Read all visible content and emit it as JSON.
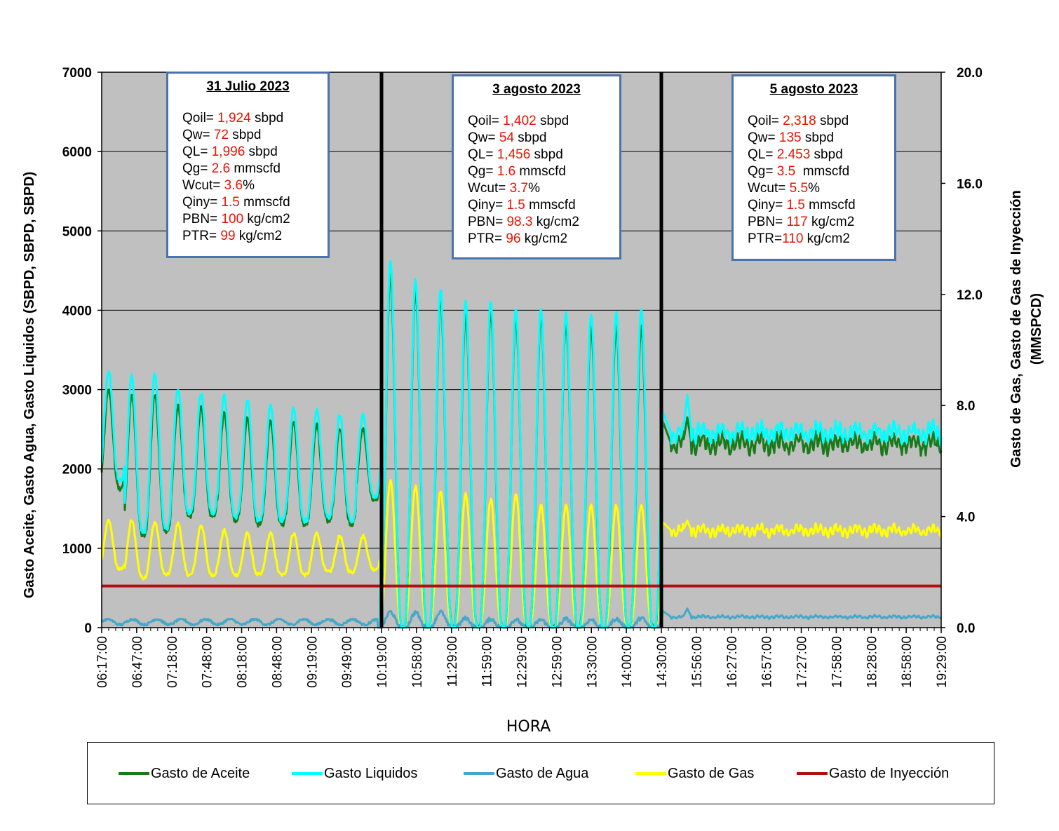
{
  "chart_data": {
    "type": "line",
    "xlabel": "HORA",
    "ylabel_left": "Gasto Aceite, Gasto Agua, Gasto Liquidos (SBPD, SBPD, SBPD)",
    "ylabel_right_line1": "Gasto de Gas, Gasto de Gas de Inyección",
    "ylabel_right_line2": "(MMSPCD)",
    "ylim_left": [
      0,
      7000
    ],
    "ylim_right": [
      0,
      20
    ],
    "yticks_left": [
      "0",
      "1000",
      "2000",
      "3000",
      "4000",
      "5000",
      "6000",
      "7000"
    ],
    "yticks_right": [
      "0.0",
      "4.0",
      "8.0",
      "12.0",
      "16.0",
      "20.0"
    ],
    "x_tick_labels": [
      "06:17:00",
      "06:47:00",
      "07:18:00",
      "07:48:00",
      "08:18:00",
      "08:48:00",
      "09:19:00",
      "09:49:00",
      "10:19:00",
      "10:58:00",
      "11:29:00",
      "11:59:00",
      "12:29:00",
      "12:59:00",
      "13:30:00",
      "14:00:00",
      "14:30:00",
      "15:56:00",
      "16:27:00",
      "16:57:00",
      "17:27:00",
      "17:58:00",
      "18:28:00",
      "18:58:00",
      "19:29:00"
    ],
    "grid": "horizontal",
    "background": "#c0c0c0",
    "separators_at_tick": [
      "10:19:00",
      "14:30:00"
    ],
    "series": [
      {
        "name": "Gasto de Aceite",
        "color": "#1a7a1a",
        "axis": "left",
        "segment1": {
          "peaks": [
            3000,
            2950,
            2950,
            2800,
            2780,
            2710,
            2650,
            2600,
            2600,
            2550,
            2520,
            2500
          ],
          "troughs": [
            1750,
            1150,
            1200,
            1400,
            1400,
            1350,
            1300,
            1300,
            1300,
            1350,
            1300,
            1600
          ],
          "end": 0
        },
        "segment2": {
          "peaks": [
            4450,
            4250,
            4150,
            3950,
            4000,
            3900,
            3900,
            3850,
            3800,
            3800,
            3800
          ],
          "troughs": [
            0,
            0,
            0,
            0,
            0,
            0,
            0,
            0,
            0,
            0,
            0
          ]
        },
        "segment3": {
          "start": 2600,
          "peak": 2650,
          "mean": 2320,
          "min": 2050,
          "max": 2650
        }
      },
      {
        "name": "Gasto Liquidos",
        "color": "#00ffff",
        "axis": "left",
        "segment1": {
          "peaks": [
            3230,
            3180,
            3200,
            3020,
            2960,
            2920,
            2870,
            2820,
            2780,
            2730,
            2700,
            2680
          ],
          "troughs": [
            1850,
            1200,
            1250,
            1450,
            1450,
            1400,
            1350,
            1350,
            1350,
            1400,
            1350,
            1650
          ],
          "end": 0
        },
        "segment2": {
          "peaks": [
            4600,
            4380,
            4260,
            4100,
            4120,
            4000,
            4010,
            3950,
            3950,
            3970,
            4000
          ],
          "troughs": [
            0,
            0,
            0,
            0,
            0,
            0,
            0,
            0,
            0,
            0,
            0
          ]
        },
        "segment3": {
          "start": 2720,
          "peak": 2930,
          "mean": 2460,
          "min": 2200,
          "max": 2930
        }
      },
      {
        "name": "Gasto de Agua",
        "color": "#46a8c8",
        "axis": "left",
        "segment1": {
          "mean": 72,
          "min": 30,
          "max": 110
        },
        "segment2": {
          "peaks": [
            200,
            190,
            200,
            120,
            110,
            100,
            100,
            110,
            100,
            110,
            120
          ],
          "troughs": [
            0,
            0,
            0,
            0,
            0,
            0,
            0,
            0,
            0,
            0,
            0
          ]
        },
        "segment3": {
          "start": 210,
          "peak": 240,
          "mean": 135,
          "min": 100,
          "max": 240
        }
      },
      {
        "name": "Gasto de Gas",
        "color": "#ffff00",
        "axis": "right",
        "segment1": {
          "peaks": [
            3.85,
            3.85,
            3.8,
            3.75,
            3.7,
            3.5,
            3.4,
            3.4,
            3.4,
            3.4,
            3.3,
            3.3
          ],
          "troughs": [
            2.1,
            1.8,
            1.9,
            1.9,
            1.9,
            1.9,
            1.9,
            1.9,
            1.9,
            2.0,
            2.0,
            2.1
          ],
          "end": 0
        },
        "segment2": {
          "peaks": [
            5.3,
            5.1,
            4.9,
            4.8,
            4.6,
            4.8,
            4.4,
            4.4,
            4.4,
            4.4,
            4.4
          ],
          "troughs": [
            0,
            0,
            0,
            0,
            0,
            0,
            0,
            0,
            0,
            0,
            0
          ]
        },
        "segment3": {
          "start": 3.8,
          "peak": 3.85,
          "mean": 3.5,
          "min": 3.2,
          "max": 3.85
        }
      },
      {
        "name": "Gasto de Inyección",
        "color": "#b01010",
        "axis": "right",
        "value": 1.5
      }
    ]
  },
  "annotations": [
    {
      "title": "31 Julio 2023",
      "lines": [
        {
          "prefix": "Qoil= ",
          "value": "1,924",
          "suffix": " sbpd"
        },
        {
          "prefix": "Qw= ",
          "value": "72",
          "suffix": " sbpd"
        },
        {
          "prefix": "QL= ",
          "value": "1,996",
          "suffix": " sbpd"
        },
        {
          "prefix": "Qg= ",
          "value": "2.6",
          "suffix": " mmscfd"
        },
        {
          "prefix": "Wcut= ",
          "value": "3.6",
          "suffix": "%"
        },
        {
          "prefix": "Qiny= ",
          "value": "1.5",
          "suffix": " mmscfd"
        },
        {
          "prefix": "PBN= ",
          "value": "100",
          "suffix": " kg/cm2"
        },
        {
          "prefix": "PTR= ",
          "value": "99",
          "suffix": " kg/cm2"
        }
      ]
    },
    {
      "title": "3 agosto 2023",
      "lines": [
        {
          "prefix": "Qoil= ",
          "value": "1,402",
          "suffix": " sbpd"
        },
        {
          "prefix": "Qw= ",
          "value": "54",
          "suffix": " sbpd"
        },
        {
          "prefix": "QL= ",
          "value": "1,456",
          "suffix": " sbpd"
        },
        {
          "prefix": "Qg= ",
          "value": "1.6",
          "suffix": " mmscfd"
        },
        {
          "prefix": "Wcut= ",
          "value": "3.7",
          "suffix": "%"
        },
        {
          "prefix": "Qiny= ",
          "value": "1.5",
          "suffix": " mmscfd"
        },
        {
          "prefix": "PBN= ",
          "value": "98.3",
          "suffix": " kg/cm2"
        },
        {
          "prefix": "PTR= ",
          "value": "96",
          "suffix": " kg/cm2"
        }
      ]
    },
    {
      "title": "5 agosto 2023",
      "lines": [
        {
          "prefix": "Qoil= ",
          "value": "2,318",
          "suffix": " sbpd"
        },
        {
          "prefix": "Qw= ",
          "value": "135",
          "suffix": " sbpd"
        },
        {
          "prefix": "QL= ",
          "value": "2.453",
          "suffix": " sbpd"
        },
        {
          "prefix": "Qg= ",
          "value": "3.5",
          "suffix": "  mmscfd"
        },
        {
          "prefix": "Wcut= ",
          "value": "5.5",
          "suffix": "%"
        },
        {
          "prefix": "Qiny= ",
          "value": "1.5",
          "suffix": " mmscfd"
        },
        {
          "prefix": "PBN= ",
          "value": "117",
          "suffix": " kg/cm2"
        },
        {
          "prefix": "PTR=",
          "value": "110",
          "suffix": " kg/cm2"
        }
      ]
    }
  ],
  "legend": {
    "placement": "bottom",
    "items": [
      {
        "label": "Gasto de Aceite",
        "color": "#1a7a1a"
      },
      {
        "label": "Gasto Liquidos",
        "color": "#00ffff"
      },
      {
        "label": "Gasto de Agua",
        "color": "#46a8c8"
      },
      {
        "label": "Gasto de Gas",
        "color": "#ffff00"
      },
      {
        "label": "Gasto de Inyección",
        "color": "#b01010"
      }
    ]
  }
}
